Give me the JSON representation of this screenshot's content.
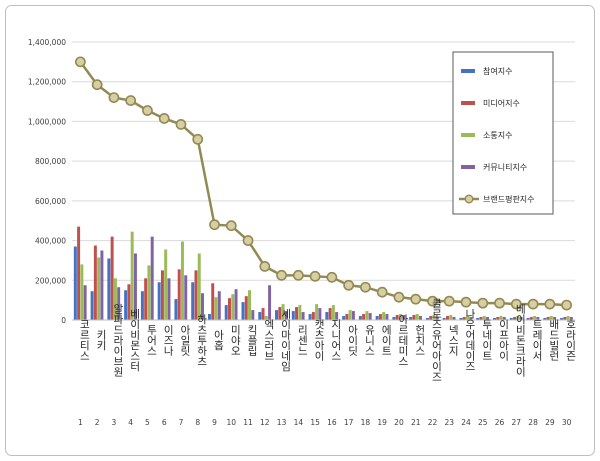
{
  "chart_data": {
    "type": "bar",
    "title": "",
    "xlabel": "",
    "ylabel": "",
    "ylim": [
      0,
      1400000
    ],
    "yticks": [
      0,
      200000,
      400000,
      600000,
      800000,
      1000000,
      1200000,
      1400000
    ],
    "ytick_labels": [
      "0",
      "200,000",
      "400,000",
      "600,000",
      "800,000",
      "1,000,000",
      "1,200,000",
      "1,400,000"
    ],
    "grid": true,
    "legend_position": "right",
    "ranks": [
      "1",
      "2",
      "3",
      "4",
      "5",
      "6",
      "7",
      "8",
      "9",
      "10",
      "11",
      "12",
      "13",
      "14",
      "15",
      "16",
      "17",
      "18",
      "19",
      "20",
      "21",
      "22",
      "23",
      "24",
      "25",
      "26",
      "27",
      "28",
      "29",
      "30"
    ],
    "categories": [
      "코르티스",
      "키키",
      "알파드라이브원",
      "베이비몬스터",
      "투어스",
      "이즈나",
      "아일릿",
      "하츠투하츠",
      "아홉",
      "미야오",
      "킥플립",
      "엑스러브",
      "세이마이네임",
      "리센느",
      "캣츠아이",
      "지니어스",
      "아이딧",
      "유니스",
      "에이트",
      "아르테미스",
      "헌치스",
      "클로즈유어아이즈",
      "넥스지",
      "나우어데이즈",
      "투네이트",
      "이프아이",
      "베이비돈크라이",
      "트레이서",
      "배드빌런",
      "호라이즌"
    ],
    "series": [
      {
        "name": "참여지수",
        "color": "#4472c4",
        "kind": "bar",
        "values": [
          370000,
          145000,
          310000,
          150000,
          145000,
          190000,
          105000,
          190000,
          30000,
          75000,
          90000,
          40000,
          50000,
          45000,
          30000,
          40000,
          20000,
          20000,
          20000,
          15000,
          15000,
          10000,
          10000,
          10000,
          10000,
          10000,
          10000,
          10000,
          10000,
          10000
        ]
      },
      {
        "name": "미디어지수",
        "color": "#c0504d",
        "kind": "bar",
        "values": [
          470000,
          375000,
          420000,
          180000,
          210000,
          250000,
          255000,
          250000,
          185000,
          110000,
          120000,
          60000,
          65000,
          65000,
          40000,
          60000,
          30000,
          30000,
          30000,
          25000,
          25000,
          20000,
          20000,
          15000,
          15000,
          15000,
          15000,
          15000,
          15000,
          15000
        ]
      },
      {
        "name": "소통지수",
        "color": "#9bbb59",
        "kind": "bar",
        "values": [
          280000,
          315000,
          210000,
          445000,
          275000,
          355000,
          395000,
          335000,
          115000,
          130000,
          150000,
          20000,
          80000,
          75000,
          80000,
          75000,
          50000,
          45000,
          40000,
          30000,
          30000,
          25000,
          25000,
          20000,
          20000,
          20000,
          20000,
          20000,
          20000,
          20000
        ]
      },
      {
        "name": "커뮤니티지수",
        "color": "#8064a2",
        "kind": "bar",
        "values": [
          175000,
          350000,
          165000,
          335000,
          420000,
          210000,
          225000,
          135000,
          145000,
          155000,
          50000,
          175000,
          45000,
          40000,
          60000,
          40000,
          45000,
          35000,
          30000,
          25000,
          20000,
          15000,
          15000,
          15000,
          15000,
          15000,
          15000,
          15000,
          15000,
          15000
        ]
      },
      {
        "name": "브랜드평판지수",
        "color": "#938953",
        "kind": "line",
        "values": [
          1300000,
          1185000,
          1120000,
          1105000,
          1055000,
          1015000,
          985000,
          910000,
          480000,
          475000,
          400000,
          270000,
          225000,
          225000,
          220000,
          215000,
          175000,
          165000,
          140000,
          115000,
          105000,
          95000,
          95000,
          90000,
          85000,
          85000,
          80000,
          80000,
          80000,
          75000
        ]
      }
    ]
  }
}
